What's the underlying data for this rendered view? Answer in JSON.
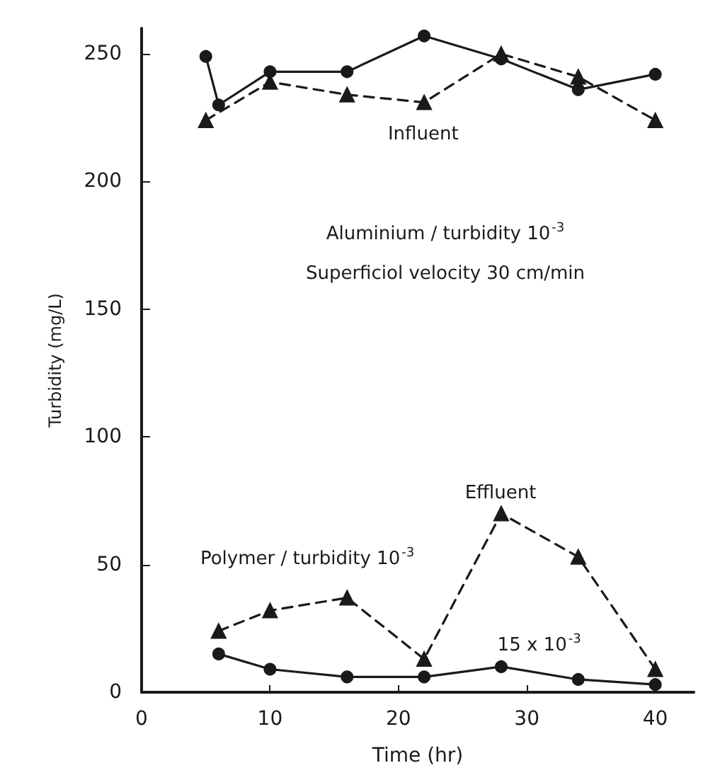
{
  "chart_data": {
    "type": "line",
    "xlabel": "Time (hr)",
    "ylabel": "Turbidity (mg/L)",
    "xlim": [
      0,
      43
    ],
    "xticks": [
      0,
      10,
      20,
      30,
      40
    ],
    "ylim": [
      0,
      260
    ],
    "yticks": [
      0,
      50,
      100,
      150,
      200,
      250
    ],
    "grid": false,
    "series": [
      {
        "color": "#1a1a1a",
        "marker": "circle",
        "line_style": "solid",
        "x": [
          5,
          6,
          10,
          16,
          22,
          28,
          34,
          40
        ],
        "values": [
          249,
          230,
          243,
          243,
          257,
          248,
          236,
          242
        ]
      },
      {
        "color": "#1a1a1a",
        "marker": "triangle",
        "line_style": "dashed",
        "x": [
          5,
          10,
          16,
          22,
          28,
          34,
          40
        ],
        "values": [
          224,
          239,
          234,
          231,
          250,
          241,
          224
        ]
      },
      {
        "color": "#1a1a1a",
        "marker": "triangle",
        "line_style": "dashed",
        "x": [
          6,
          10,
          16,
          22,
          28,
          34,
          40
        ],
        "values": [
          24,
          32,
          37,
          13,
          70,
          53,
          9
        ]
      },
      {
        "color": "#1a1a1a",
        "marker": "circle",
        "line_style": "solid",
        "x": [
          6,
          10,
          16,
          22,
          28,
          34,
          40
        ],
        "values": [
          15,
          9,
          6,
          6,
          10,
          5,
          3
        ]
      }
    ],
    "annotations": [
      "Influent",
      "Aluminium / turbidity 10$^{-3}$",
      "Superficiol velocity 30 cm/min",
      "Effluent",
      "Polymer / turbidity 10$^{-3}$",
      "15 x 10$^{-3}$"
    ]
  }
}
